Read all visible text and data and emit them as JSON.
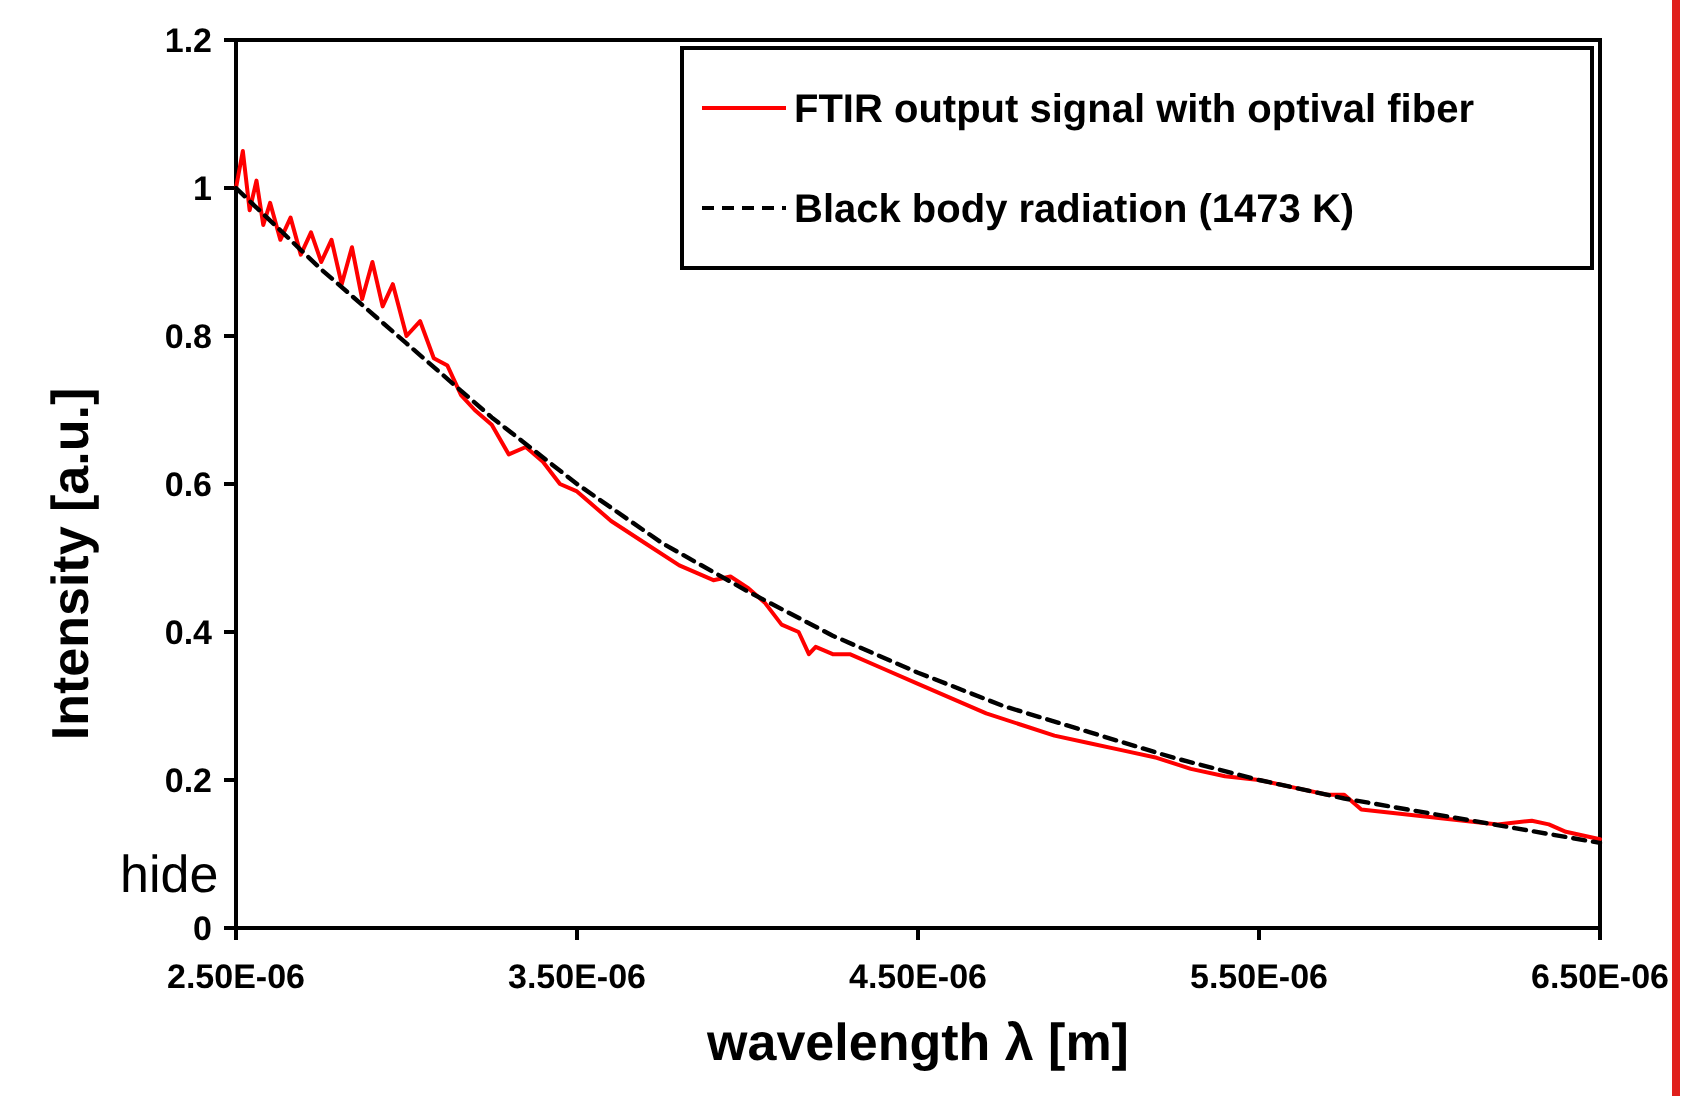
{
  "chart_data": {
    "type": "line",
    "xlabel": "wavelength λ   [m]",
    "ylabel": "Intensity  [a.u.]",
    "xlim": [
      2.5e-06,
      6.5e-06
    ],
    "xticks": [
      {
        "value": 2.5e-06,
        "label": "2.50E-06"
      },
      {
        "value": 3.5e-06,
        "label": "3.50E-06"
      },
      {
        "value": 4.5e-06,
        "label": "4.50E-06"
      },
      {
        "value": 5.5e-06,
        "label": "5.50E-06"
      },
      {
        "value": 6.5e-06,
        "label": "6.50E-06"
      }
    ],
    "ylim": [
      0,
      1.2
    ],
    "yticks": [
      0,
      0.2,
      0.4,
      0.6,
      0.8,
      1,
      1.2
    ],
    "grid": false,
    "legend": "top right",
    "marker": "none",
    "annotations": [
      "hide"
    ],
    "series": [
      {
        "name": "FTIR output signal with optival fiber",
        "color": "#ff0000",
        "line_style": "solid",
        "x": [
          2.5e-06,
          2.52e-06,
          2.54e-06,
          2.56e-06,
          2.58e-06,
          2.6e-06,
          2.63e-06,
          2.66e-06,
          2.69e-06,
          2.72e-06,
          2.75e-06,
          2.78e-06,
          2.81e-06,
          2.84e-06,
          2.87e-06,
          2.9e-06,
          2.93e-06,
          2.96e-06,
          3e-06,
          3.04e-06,
          3.08e-06,
          3.12e-06,
          3.16e-06,
          3.2e-06,
          3.25e-06,
          3.3e-06,
          3.35e-06,
          3.4e-06,
          3.45e-06,
          3.5e-06,
          3.6e-06,
          3.7e-06,
          3.8e-06,
          3.9e-06,
          3.95e-06,
          4e-06,
          4.05e-06,
          4.1e-06,
          4.15e-06,
          4.18e-06,
          4.2e-06,
          4.25e-06,
          4.3e-06,
          4.4e-06,
          4.5e-06,
          4.6e-06,
          4.7e-06,
          4.8e-06,
          4.9e-06,
          5e-06,
          5.1e-06,
          5.2e-06,
          5.3e-06,
          5.4e-06,
          5.5e-06,
          5.6e-06,
          5.7e-06,
          5.75e-06,
          5.8e-06,
          5.9e-06,
          6e-06,
          6.1e-06,
          6.2e-06,
          6.3e-06,
          6.35e-06,
          6.4e-06,
          6.5e-06
        ],
        "values": [
          1.0,
          1.05,
          0.97,
          1.01,
          0.95,
          0.98,
          0.93,
          0.96,
          0.91,
          0.94,
          0.9,
          0.93,
          0.87,
          0.92,
          0.85,
          0.9,
          0.84,
          0.87,
          0.8,
          0.82,
          0.77,
          0.76,
          0.72,
          0.7,
          0.68,
          0.64,
          0.65,
          0.63,
          0.6,
          0.59,
          0.55,
          0.52,
          0.49,
          0.47,
          0.475,
          0.46,
          0.44,
          0.41,
          0.4,
          0.37,
          0.38,
          0.37,
          0.37,
          0.35,
          0.33,
          0.31,
          0.29,
          0.275,
          0.26,
          0.25,
          0.24,
          0.23,
          0.215,
          0.205,
          0.2,
          0.19,
          0.18,
          0.18,
          0.16,
          0.155,
          0.15,
          0.145,
          0.14,
          0.145,
          0.14,
          0.13,
          0.12
        ]
      },
      {
        "name": "Black body radiation (1473 K)",
        "color": "#000000",
        "line_style": "dashed",
        "x": [
          2.5e-06,
          2.75e-06,
          3e-06,
          3.25e-06,
          3.5e-06,
          3.75e-06,
          4e-06,
          4.25e-06,
          4.5e-06,
          4.75e-06,
          5e-06,
          5.25e-06,
          5.5e-06,
          5.75e-06,
          6e-06,
          6.25e-06,
          6.5e-06
        ],
        "values": [
          1.0,
          0.89,
          0.79,
          0.69,
          0.6,
          0.52,
          0.455,
          0.395,
          0.345,
          0.3,
          0.265,
          0.23,
          0.2,
          0.175,
          0.155,
          0.135,
          0.115
        ]
      }
    ]
  }
}
